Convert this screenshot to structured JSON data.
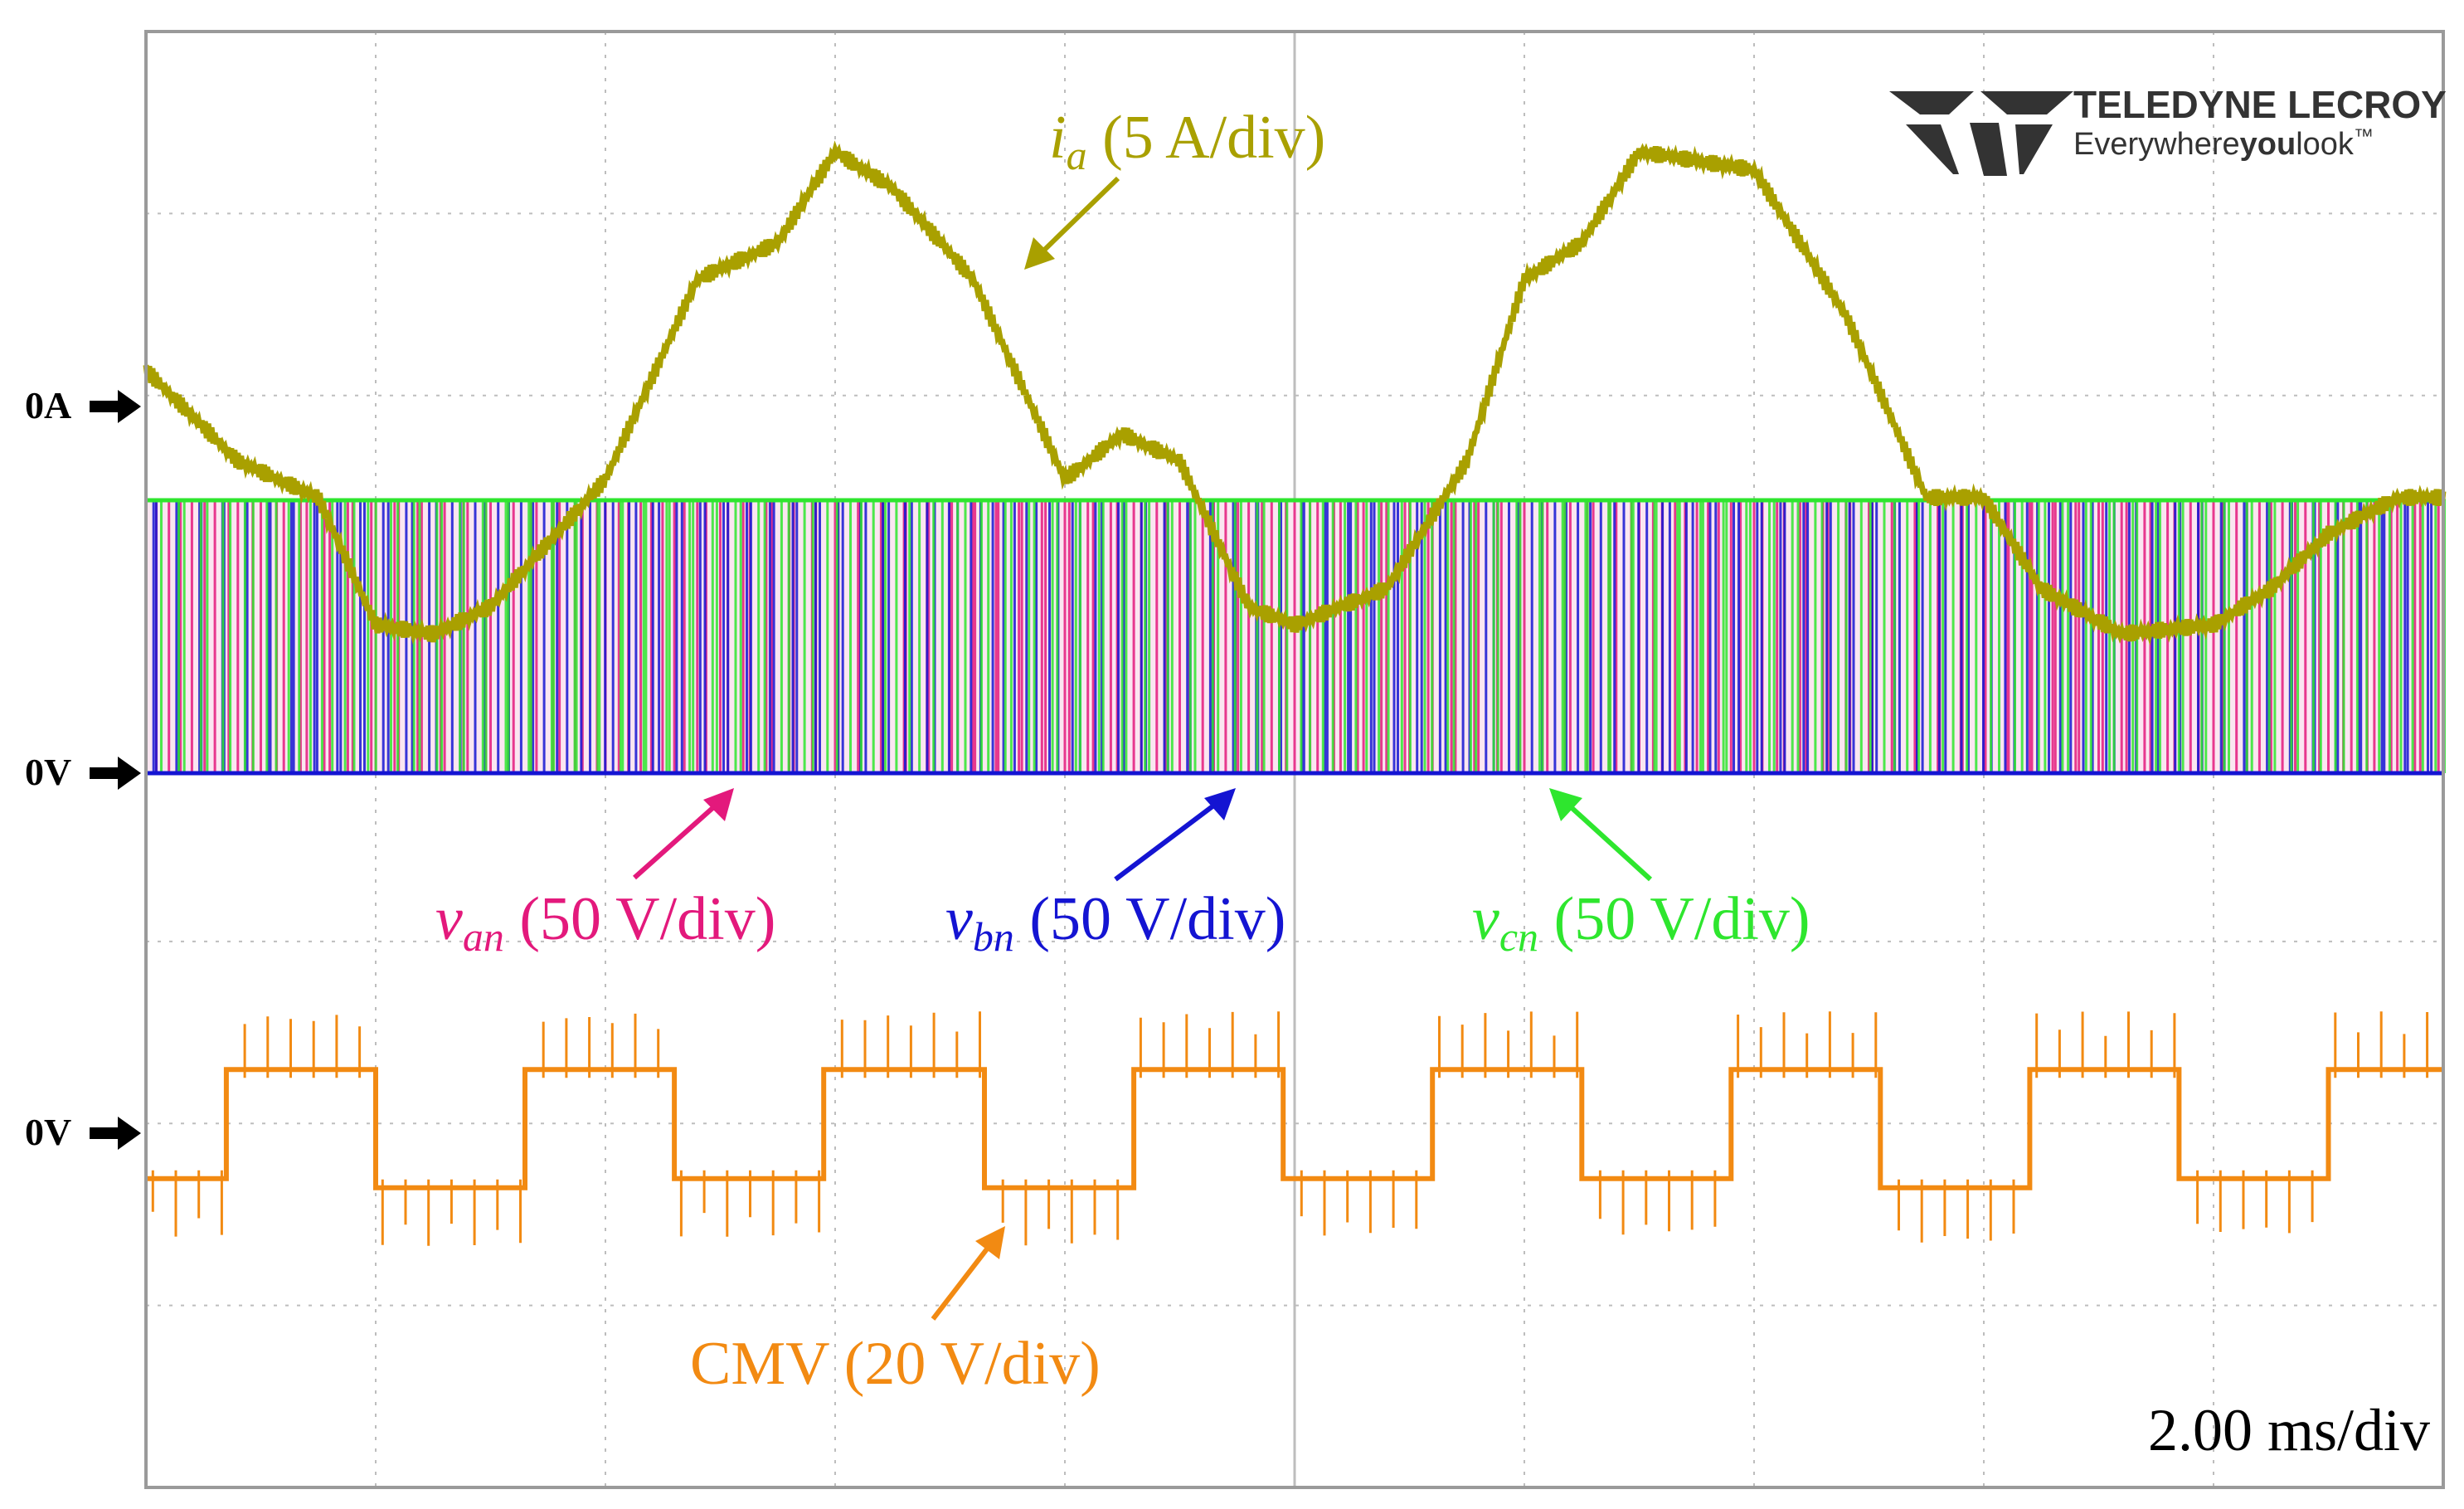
{
  "brand": {
    "name": "TELEDYNE LECROY",
    "tagline_a": "Everywhere",
    "tagline_b": "you",
    "tagline_c": "look",
    "tagline_tm": "™"
  },
  "timebase": "2.00 ms/div",
  "markers": [
    {
      "id": "ia-zero",
      "text": "0A"
    },
    {
      "id": "v-zero",
      "text": "0V"
    },
    {
      "id": "cmv-zero",
      "text": "0V"
    }
  ],
  "labels": {
    "ia": {
      "sym": "i",
      "sub": "a",
      "rest": " (5 A/div)"
    },
    "van": {
      "sym": "v",
      "sub": "an",
      "rest": " (50 V/div)"
    },
    "vbn": {
      "sym": "v",
      "sub": "bn",
      "rest": " (50 V/div)"
    },
    "vcn": {
      "sym": "v",
      "sub": "cn",
      "rest": " (50 V/div)"
    },
    "cmv": {
      "text": "CMV (20 V/div)"
    }
  },
  "colors": {
    "ia": "#a9a000",
    "van": "#e3197c",
    "vbn": "#1414d2",
    "vcn": "#2ee62e",
    "cmv": "#f28a12",
    "grid": "#bdbdbd",
    "frame": "#9a9a9a"
  },
  "chart_data": {
    "type": "line",
    "grid": {
      "x_divisions": 10,
      "y_divisions": 8,
      "on": true
    },
    "x_unit_per_div": "2.00 ms",
    "series": [
      {
        "key": "ia",
        "name": "i_a",
        "scale": "5 A/div",
        "t_ms": [
          0,
          0.8,
          1.5,
          2.0,
          2.5,
          3.0,
          4.0,
          4.8,
          5.5,
          6.0,
          6.5,
          7.2,
          8.0,
          8.5,
          9.0,
          9.6,
          10.0,
          10.8,
          11.5,
          12.0,
          12.5,
          13.0,
          14.0,
          14.8,
          15.5,
          16.0,
          16.5,
          17.2,
          18.0,
          18.5,
          19.0,
          19.6,
          20.0
        ],
        "divs": [
          0.2,
          -0.3,
          -0.5,
          -1.2,
          -1.25,
          -1.1,
          -0.4,
          0.7,
          0.9,
          1.4,
          1.2,
          0.7,
          -0.4,
          -0.15,
          -0.3,
          -1.1,
          -1.2,
          -1.0,
          -0.3,
          0.7,
          0.9,
          1.4,
          1.3,
          0.5,
          -0.5,
          -0.5,
          -1.0,
          -1.25,
          -1.2,
          -1.0,
          -0.7,
          -0.5,
          -0.5
        ]
      },
      {
        "key": "cmv",
        "name": "CMV",
        "scale": "20 V/div",
        "t_ms": [
          0,
          0.7,
          0.7,
          2.0,
          2.0,
          3.3,
          3.3,
          4.6,
          4.6,
          5.9,
          5.9,
          7.3,
          7.3,
          8.6,
          8.6,
          9.9,
          9.9,
          11.2,
          11.2,
          12.5,
          12.5,
          13.8,
          13.8,
          15.1,
          15.1,
          16.4,
          16.4,
          17.7,
          17.7,
          19.0,
          19.0,
          20.0
        ],
        "divs": [
          -0.25,
          -0.25,
          0.35,
          0.35,
          -0.3,
          -0.3,
          0.35,
          0.35,
          -0.25,
          -0.25,
          0.35,
          0.35,
          -0.3,
          -0.3,
          0.35,
          0.35,
          -0.25,
          -0.25,
          0.35,
          0.35,
          -0.25,
          -0.25,
          0.35,
          0.35,
          -0.3,
          -0.3,
          0.35,
          0.35,
          -0.25,
          -0.25,
          0.35,
          0.35
        ]
      },
      {
        "key": "phase_voltages",
        "name": "v_an / v_bn / v_cn",
        "scale": "50 V/div",
        "dc_level_divs": 1.5,
        "switching_pulses_per_div": 10
      }
    ]
  }
}
